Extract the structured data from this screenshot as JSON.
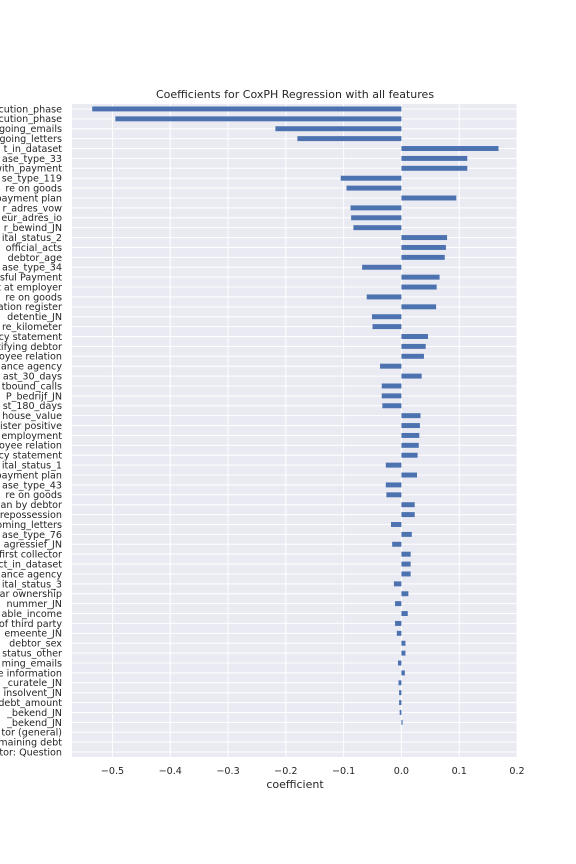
{
  "chart_data": {
    "type": "bar",
    "orientation": "horizontal",
    "title": "Coefficients for CoxPH Regression with all features",
    "xlabel": "coefficient",
    "ylabel": "",
    "xlim": [
      -0.57,
      0.2
    ],
    "xticks": [
      -0.5,
      -0.4,
      -0.3,
      -0.2,
      -0.1,
      0.0,
      0.1,
      0.2
    ],
    "xtick_labels": [
      "−0.5",
      "−0.4",
      "−0.3",
      "−0.2",
      "−0.1",
      "0.0",
      "0.1",
      "0.2"
    ],
    "grid": true,
    "bar_color": "#4c72b0",
    "background_color": "#eaeaf2",
    "categories": [
      "cution_phase",
      "cution_phase",
      "going_emails",
      "going_letters",
      "t_in_dataset",
      "ase_type_33",
      "with_payment",
      "se_type_119",
      "re on goods",
      "payment plan",
      "r_adres_vow",
      "eur_adres_io",
      "r_bewind_JN",
      "ital_status_2",
      "official_acts",
      "debtor_age",
      "ase_type_34",
      "sful Payment",
      "t at employer",
      "re on goods",
      "ation register",
      "detentie_JN",
      "re_kilometer",
      "cy statement",
      "tifying debtor",
      "oyee relation",
      "ance agency",
      "ast_30_days",
      "tbound_calls",
      "P_bedrijf_JN",
      "st_180_days",
      "house_value",
      "ister positive",
      "employment",
      "oyee relation",
      "cy statement",
      "ital_status_1",
      "payment plan",
      "ase_type_43",
      "re on goods",
      "lan by debtor",
      "repossession",
      "oming_letters",
      "ase_type_76",
      "agressief_JN",
      "first collector",
      "ct_in_dataset",
      "ance agency",
      "ital_status_3",
      "ar ownership",
      "nummer_JN",
      "able_income",
      "of third party",
      "emeente_JN",
      "debtor_sex",
      "status_other",
      "ming_emails",
      "e information",
      "_curatele_JN",
      "insolvent_JN",
      "debt_amount",
      "_bekend_JN",
      "_bekend_JN",
      "tor (general)",
      "maining debt",
      "tor: Question"
    ],
    "values": [
      -0.535,
      -0.495,
      -0.218,
      -0.18,
      0.168,
      0.114,
      0.114,
      -0.105,
      -0.095,
      0.095,
      -0.088,
      -0.087,
      -0.083,
      0.079,
      0.077,
      0.075,
      -0.068,
      0.066,
      0.061,
      -0.06,
      0.06,
      -0.051,
      -0.05,
      0.046,
      0.042,
      0.039,
      -0.037,
      0.035,
      -0.034,
      -0.034,
      -0.033,
      0.033,
      0.032,
      0.031,
      0.03,
      0.028,
      -0.027,
      0.027,
      -0.027,
      -0.026,
      0.023,
      0.023,
      -0.018,
      0.018,
      -0.016,
      0.016,
      0.016,
      0.016,
      -0.013,
      0.012,
      -0.011,
      0.011,
      -0.011,
      -0.008,
      0.007,
      0.007,
      -0.006,
      0.006,
      -0.005,
      -0.004,
      -0.004,
      -0.003,
      0.002,
      0.0,
      0.0,
      0.0
    ]
  }
}
